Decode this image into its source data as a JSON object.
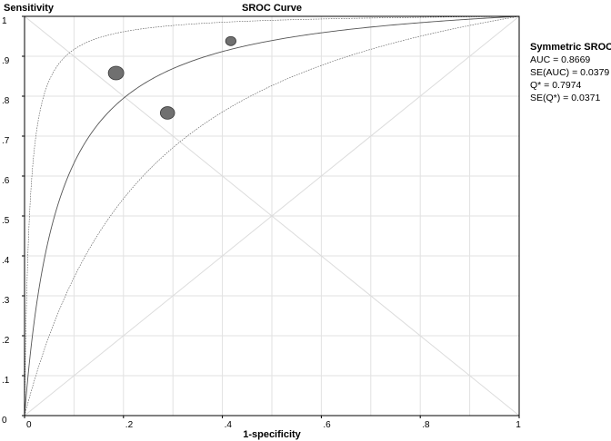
{
  "chart_data": {
    "type": "scatter",
    "title": "SROC Curve",
    "xlabel": "1-specificity",
    "ylabel": "Sensitivity",
    "xlim": [
      0,
      1
    ],
    "ylim": [
      0,
      1
    ],
    "x_ticks": [
      {
        "value": 0,
        "label": "0"
      },
      {
        "value": 0.2,
        "label": ".2"
      },
      {
        "value": 0.4,
        "label": ".4"
      },
      {
        "value": 0.6,
        "label": ".6"
      },
      {
        "value": 0.8,
        "label": ".8"
      },
      {
        "value": 1,
        "label": "1"
      }
    ],
    "y_ticks": [
      {
        "value": 0,
        "label": "0"
      },
      {
        "value": 0.1,
        "label": ".1"
      },
      {
        "value": 0.2,
        "label": ".2"
      },
      {
        "value": 0.3,
        "label": ".3"
      },
      {
        "value": 0.4,
        "label": ".4"
      },
      {
        "value": 0.5,
        "label": ".5"
      },
      {
        "value": 0.6,
        "label": ".6"
      },
      {
        "value": 0.7,
        "label": ".7"
      },
      {
        "value": 0.8,
        "label": ".8"
      },
      {
        "value": 0.9,
        "label": ".9"
      },
      {
        "value": 1,
        "label": "1"
      }
    ],
    "grid": true,
    "studies": [
      {
        "x": 0.185,
        "y": 0.858,
        "weight": 1.0
      },
      {
        "x": 0.289,
        "y": 0.758,
        "weight": 0.85
      },
      {
        "x": 0.417,
        "y": 0.938,
        "weight": 0.45
      }
    ],
    "curves": [
      {
        "role": "upper-bound",
        "D": 4.6
      },
      {
        "role": "sroc",
        "D": 2.74
      },
      {
        "role": "lower-bound",
        "D": 1.56
      }
    ],
    "reference_lines": [
      "diagonal",
      "anti-diagonal"
    ],
    "legend_placement": "right",
    "colors": {
      "points": "#707070",
      "point_stroke": "#3a3a3a",
      "curve": "#555555",
      "grid": "#e2e2e2",
      "axis": "#000000"
    }
  },
  "stats": {
    "title": "Symmetric SROC",
    "lines": [
      "AUC = 0.8669",
      "SE(AUC) = 0.0379",
      "Q* = 0.7974",
      "SE(Q*) = 0.0371"
    ]
  }
}
